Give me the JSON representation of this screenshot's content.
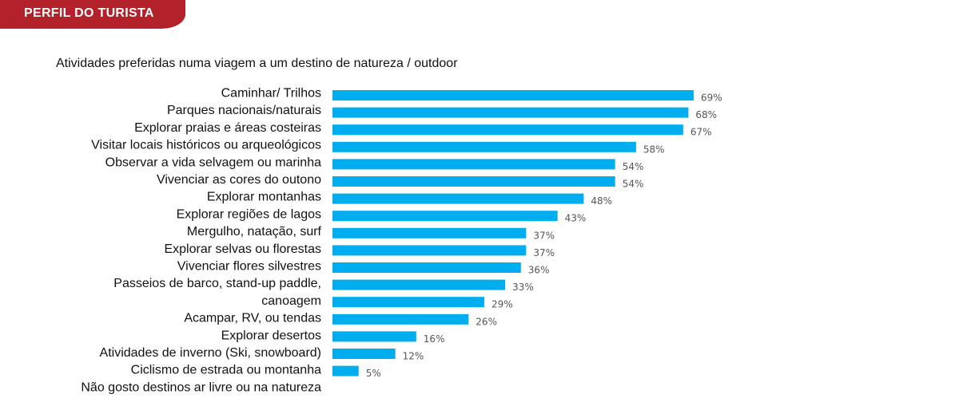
{
  "banner": {
    "text": "PERFIL DO TURISTA"
  },
  "colors": {
    "banner": "#b3212a",
    "bar": "#00aeef",
    "text": "#111111",
    "value_text": "#555555"
  },
  "chart_data": {
    "type": "bar",
    "orientation": "horizontal",
    "title": "Atividades preferidas numa viagem a um destino de natureza / outdoor",
    "value_suffix": "%",
    "categories": [
      "Caminhar/ Trilhos",
      "Parques nacionais/naturais",
      "Explorar praias e áreas costeiras",
      "Visitar locais históricos ou arqueológicos",
      "Observar a vida selvagem ou marinha",
      "Vivenciar as cores do outono",
      "Explorar montanhas",
      "Explorar regiões de lagos",
      "Mergulho, natação, surf",
      "Explorar selvas ou florestas",
      "Vivenciar flores silvestres",
      "Passeios de barco, stand-up paddle,",
      "canoagem",
      "Acampar, RV, ou tendas",
      "Explorar desertos",
      "Atividades de inverno (Ski, snowboard)",
      "Ciclismo de estrada ou montanha",
      "Não gosto destinos ar livre ou na natureza"
    ],
    "values": [
      69,
      68,
      67,
      58,
      54,
      54,
      48,
      43,
      37,
      37,
      36,
      33,
      29,
      26,
      16,
      12,
      5,
      null
    ],
    "grid": false,
    "legend": "none"
  }
}
